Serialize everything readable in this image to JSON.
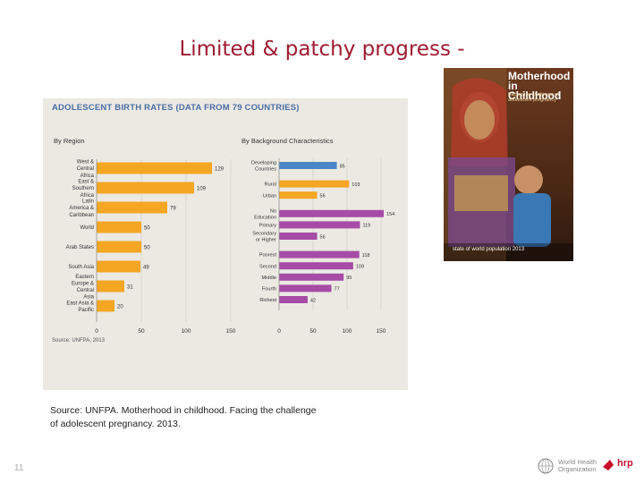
{
  "slide": {
    "title": "Limited & patchy progress -",
    "source": "Source: UNFPA. Motherhood in childhood. Facing the challenge of adolescent pregnancy. 2013.",
    "slide_number": "11"
  },
  "cover": {
    "title_line1": "Motherhood",
    "title_line2": "in Childhood",
    "subtitle": "Facing the challenge of adolescent pregnancy",
    "url": "state of world population 2013"
  },
  "logos": {
    "who": "World Health Organization",
    "hrp": "hrp"
  },
  "colors": {
    "title": "#9e1b32",
    "orange": "#f5a623",
    "blue": "#4a86c5",
    "purple": "#a64ca6",
    "panel": "#ece9e3"
  },
  "chart_data": [
    {
      "type": "bar",
      "orientation": "horizontal",
      "header": "ADOLESCENT BIRTH RATES (DATA FROM 79 COUNTRIES)",
      "title": "By Region",
      "categories": [
        "West & Central Africa",
        "East & Southern Africa",
        "Latin America & Caribbean",
        "World",
        "Arab States",
        "South Asia",
        "Eastern Europe & Central Asia",
        "East Asia & Pacific"
      ],
      "values": [
        129,
        109,
        79,
        50,
        50,
        49,
        31,
        20
      ],
      "xlim": [
        0,
        150
      ],
      "xticks": [
        0,
        50,
        100,
        150
      ],
      "color": "#f5a623",
      "source_note": "Source: UNFPA, 2013"
    },
    {
      "type": "bar",
      "orientation": "horizontal",
      "title": "By Background Characteristics",
      "categories": [
        "Developing Countries",
        "Rural",
        "Urban",
        "No Education",
        "Primary",
        "Secondary or Higher",
        "Poorest",
        "Second",
        "Middle",
        "Fourth",
        "Richest"
      ],
      "values": [
        85,
        103,
        56,
        154,
        119,
        56,
        118,
        109,
        95,
        77,
        42
      ],
      "colors": [
        "#4a86c5",
        "#f5a623",
        "#f5a623",
        "#a64ca6",
        "#a64ca6",
        "#a64ca6",
        "#a64ca6",
        "#a64ca6",
        "#a64ca6",
        "#a64ca6",
        "#a64ca6"
      ],
      "xlim": [
        0,
        150
      ],
      "xticks": [
        0,
        50,
        100,
        150
      ]
    }
  ]
}
